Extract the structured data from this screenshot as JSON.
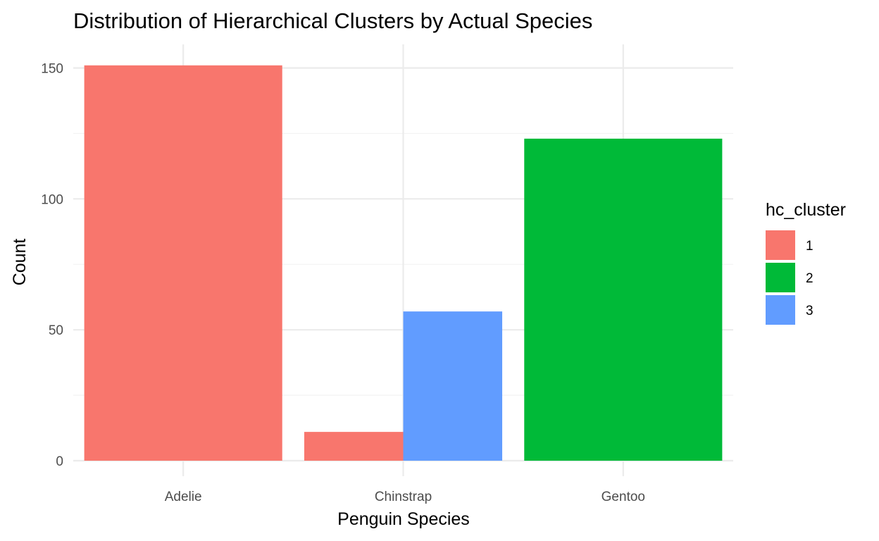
{
  "chart_data": {
    "type": "bar",
    "title": "Distribution of Hierarchical Clusters by Actual Species",
    "xlabel": "Penguin Species",
    "ylabel": "Count",
    "categories": [
      "Adelie",
      "Chinstrap",
      "Gentoo"
    ],
    "y_ticks": [
      0,
      50,
      100,
      150
    ],
    "ylim": [
      0,
      151
    ],
    "grid": true,
    "legend": {
      "title": "hc_cluster",
      "position": "right",
      "entries": [
        {
          "label": "1",
          "color": "#F8766D"
        },
        {
          "label": "2",
          "color": "#00BA38"
        },
        {
          "label": "3",
          "color": "#619CFF"
        }
      ]
    },
    "series": [
      {
        "name": "1",
        "color": "#F8766D",
        "values": [
          151,
          11,
          0
        ]
      },
      {
        "name": "2",
        "color": "#00BA38",
        "values": [
          0,
          0,
          123
        ]
      },
      {
        "name": "3",
        "color": "#619CFF",
        "values": [
          0,
          57,
          0
        ]
      }
    ]
  }
}
